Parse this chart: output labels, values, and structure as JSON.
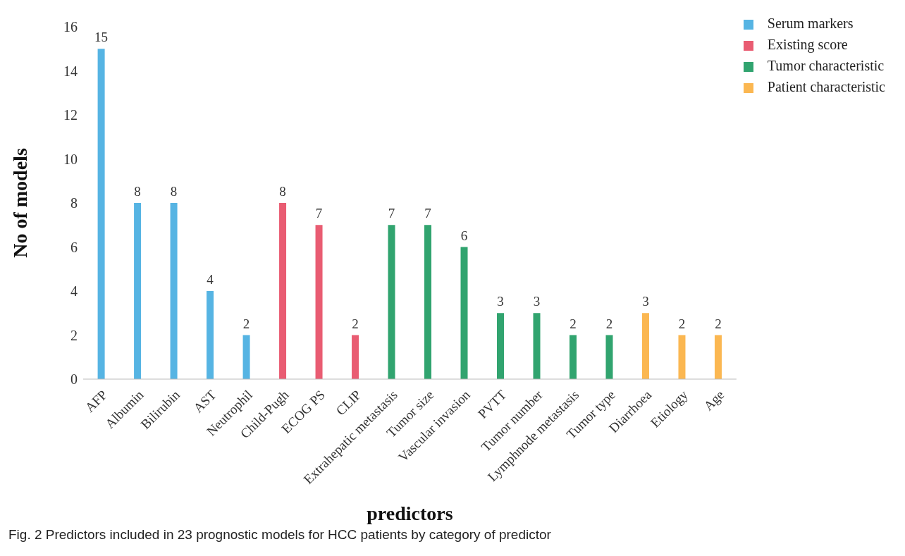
{
  "chart_data": {
    "type": "bar",
    "xlabel": "predictors",
    "ylabel": "No of models",
    "categories": [
      "AFP",
      "Albumin",
      "Bilirubin",
      "AST",
      "Neutrophil",
      "Child-Pugh",
      "ECOG PS",
      "CLIP",
      "Extrahepatic metastasis",
      "Tumor size",
      "Vascular invasion",
      "PVTT",
      "Tumor number",
      "Lymphnode metastasis",
      "Tumor type",
      "Diarrhoea",
      "Etiology",
      "Age"
    ],
    "series": [
      {
        "name": "Serum markers",
        "color": "#56b4e3",
        "values": [
          15,
          8,
          8,
          4,
          2,
          null,
          null,
          null,
          null,
          null,
          null,
          null,
          null,
          null,
          null,
          null,
          null,
          null
        ]
      },
      {
        "name": "Existing score",
        "color": "#e95c72",
        "values": [
          null,
          null,
          null,
          null,
          null,
          8,
          7,
          2,
          null,
          null,
          null,
          null,
          null,
          null,
          null,
          null,
          null,
          null
        ]
      },
      {
        "name": "Tumor characteristic",
        "color": "#31a46f",
        "values": [
          null,
          null,
          null,
          null,
          null,
          null,
          null,
          null,
          7,
          7,
          6,
          3,
          3,
          2,
          2,
          null,
          null,
          null
        ]
      },
      {
        "name": "Patient characteristic",
        "color": "#fbb751",
        "values": [
          null,
          null,
          null,
          null,
          null,
          null,
          null,
          null,
          null,
          null,
          null,
          null,
          null,
          null,
          null,
          3,
          2,
          2
        ]
      }
    ],
    "stacked": true,
    "data_labels": true,
    "ylim": [
      0,
      16
    ],
    "yticks": [
      0,
      2,
      4,
      6,
      8,
      10,
      12,
      14,
      16
    ],
    "grid": false,
    "legend": "top right",
    "annotations": [
      "Fig. 2  Predictors included in 23 prognostic models for HCC patients by category of predictor"
    ]
  }
}
